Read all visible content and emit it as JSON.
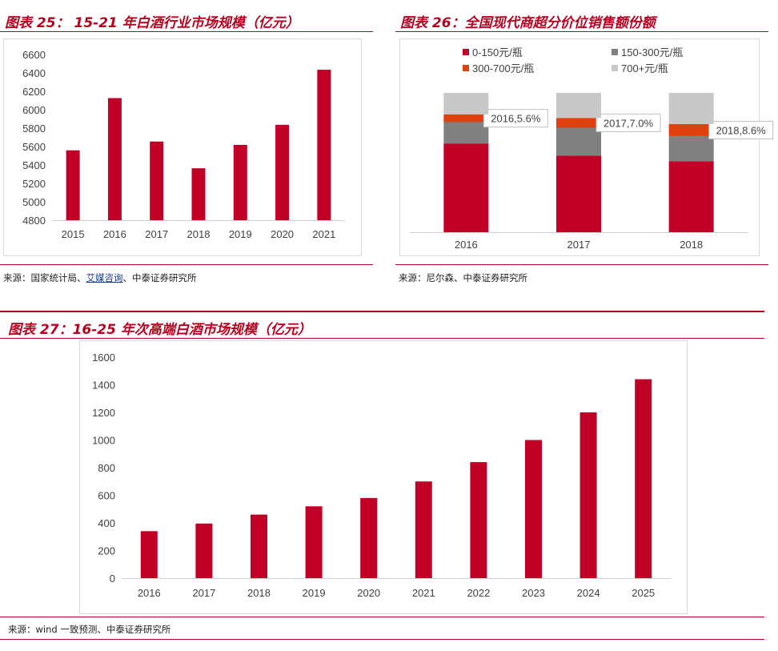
{
  "colors": {
    "accent": "#b8001f",
    "bar": "#c00027",
    "grey_dark": "#808080",
    "orange": "#e0400f",
    "grey_light": "#c8c8c8"
  },
  "fig25": {
    "title": "图表 25： 15-21 年白酒行业市场规模（亿元）",
    "source_prefix": "来源：国家统计局、",
    "source_link": "艾媒咨询",
    "source_suffix": "、中泰证券研究所",
    "chart_data": {
      "type": "bar",
      "categories": [
        "2015",
        "2016",
        "2017",
        "2018",
        "2019",
        "2020",
        "2021"
      ],
      "values": [
        5559,
        6126,
        5654,
        5364,
        5618,
        5836,
        6434
      ],
      "ylim": [
        4800,
        6600
      ],
      "yticks": [
        4800,
        5000,
        5200,
        5400,
        5600,
        5800,
        6000,
        6200,
        6400,
        6600
      ],
      "grid": false
    }
  },
  "fig26": {
    "title": "图表 26：全国现代商超分价位销售额份额",
    "source": "来源：尼尔森、中泰证券研究所",
    "chart_data": {
      "type": "bar",
      "stacked": true,
      "categories": [
        "2016",
        "2017",
        "2018"
      ],
      "series": [
        {
          "name": "0-150元/瓶",
          "values": [
            0.637,
            0.55,
            0.51
          ]
        },
        {
          "name": "150-300元/瓶",
          "values": [
            0.153,
            0.2,
            0.18
          ]
        },
        {
          "name": "300-700元/瓶",
          "values": [
            0.056,
            0.07,
            0.086
          ]
        },
        {
          "name": "700+元/瓶",
          "values": [
            0.154,
            0.18,
            0.224
          ]
        }
      ],
      "callouts": [
        "2016,5.6%",
        "2017,7.0%",
        "2018,8.6%"
      ],
      "legend": "top"
    }
  },
  "fig27": {
    "title": "图表 27：16-25 年次高端白酒市场规模（亿元）",
    "source": "来源：wind 一致预测、中泰证券研究所",
    "chart_data": {
      "type": "bar",
      "categories": [
        "2016",
        "2017",
        "2018",
        "2019",
        "2020",
        "2021",
        "2022",
        "2023",
        "2024",
        "2025"
      ],
      "values": [
        340,
        395,
        460,
        520,
        580,
        700,
        840,
        1000,
        1200,
        1440
      ],
      "ylim": [
        0,
        1600
      ],
      "yticks": [
        0,
        200,
        400,
        600,
        800,
        1000,
        1200,
        1400,
        1600
      ],
      "grid": false
    }
  }
}
